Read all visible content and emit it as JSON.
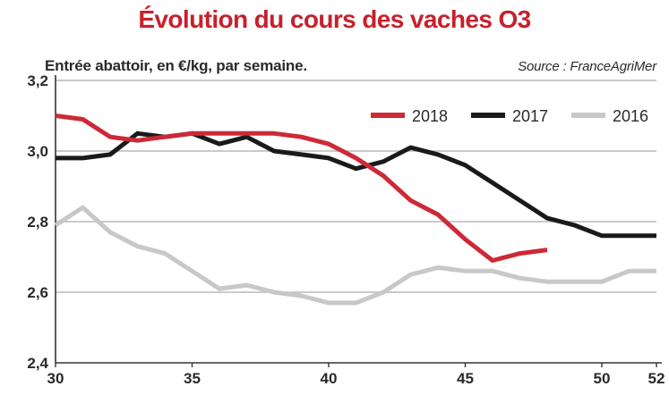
{
  "colors": {
    "title": "#c8202c",
    "text": "#2a2a2a",
    "grid": "#b8b8b8",
    "axis": "#333333"
  },
  "chart_data": {
    "type": "line",
    "title": "Évolution du cours des vaches O3",
    "subtitle": "Entrée abattoir, en €/kg, par semaine.",
    "source": "Source : FranceAgriMer",
    "xlabel": "",
    "ylabel": "",
    "xlim": [
      30,
      52
    ],
    "ylim": [
      2.4,
      3.2
    ],
    "x_ticks": [
      30,
      35,
      40,
      45,
      50,
      52
    ],
    "x_tick_labels": [
      "30",
      "35",
      "40",
      "45",
      "50",
      "52"
    ],
    "y_ticks": [
      2.4,
      2.6,
      2.8,
      3.0,
      3.2
    ],
    "y_tick_labels": [
      "2,4",
      "2,6",
      "2,8",
      "3,0",
      "3,2"
    ],
    "grid": "horizontal",
    "legend_position": "top-right",
    "series": [
      {
        "name": "2018",
        "color": "#cc2a36",
        "x": [
          30,
          31,
          32,
          33,
          34,
          35,
          36,
          37,
          38,
          39,
          40,
          41,
          42,
          43,
          44,
          45,
          46,
          47,
          48
        ],
        "y": [
          3.1,
          3.09,
          3.04,
          3.03,
          3.04,
          3.05,
          3.05,
          3.05,
          3.05,
          3.04,
          3.02,
          2.98,
          2.93,
          2.86,
          2.82,
          2.75,
          2.69,
          2.71,
          2.72
        ]
      },
      {
        "name": "2017",
        "color": "#1a1a1a",
        "x": [
          30,
          31,
          32,
          33,
          34,
          35,
          36,
          37,
          38,
          39,
          40,
          41,
          42,
          43,
          44,
          45,
          46,
          47,
          48,
          49,
          50,
          51,
          52
        ],
        "y": [
          2.98,
          2.98,
          2.99,
          3.05,
          3.04,
          3.05,
          3.02,
          3.04,
          3.0,
          2.99,
          2.98,
          2.95,
          2.97,
          3.01,
          2.99,
          2.96,
          2.91,
          2.86,
          2.81,
          2.79,
          2.76,
          2.76,
          2.76
        ]
      },
      {
        "name": "2016",
        "color": "#c8c8c8",
        "x": [
          30,
          31,
          32,
          33,
          34,
          35,
          36,
          37,
          38,
          39,
          40,
          41,
          42,
          43,
          44,
          45,
          46,
          47,
          48,
          49,
          50,
          51,
          52
        ],
        "y": [
          2.79,
          2.84,
          2.77,
          2.73,
          2.71,
          2.66,
          2.61,
          2.62,
          2.6,
          2.59,
          2.57,
          2.57,
          2.6,
          2.65,
          2.67,
          2.66,
          2.66,
          2.64,
          2.63,
          2.63,
          2.63,
          2.66,
          2.66
        ]
      }
    ]
  }
}
